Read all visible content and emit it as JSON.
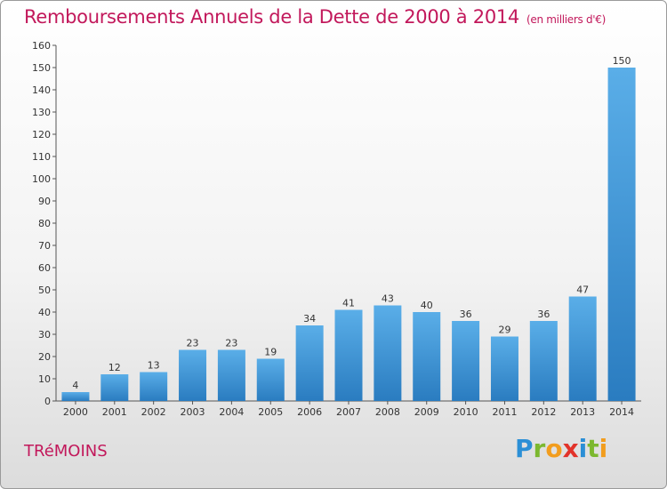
{
  "title": "Remboursements Annuels de la Dette de 2000 à 2014",
  "subtitle": "(en milliers d'€)",
  "town": "TRéMOINS",
  "logo": {
    "letters": [
      "P",
      "r",
      "o",
      "x",
      "i",
      "t",
      "i"
    ],
    "colors": [
      "#2b8fd6",
      "#7cb82f",
      "#f29d1e",
      "#e2332a",
      "#2b8fd6",
      "#7cb82f",
      "#f29d1e"
    ]
  },
  "colors": {
    "bar_top": "#5aaee8",
    "bar_bottom": "#2a7cc0",
    "title": "#c2185b"
  },
  "chart_data": {
    "type": "bar",
    "categories": [
      "2000",
      "2001",
      "2002",
      "2003",
      "2004",
      "2005",
      "2006",
      "2007",
      "2008",
      "2009",
      "2010",
      "2011",
      "2012",
      "2013",
      "2014"
    ],
    "values": [
      4,
      12,
      13,
      23,
      23,
      19,
      34,
      41,
      43,
      40,
      36,
      29,
      36,
      47,
      150
    ],
    "ylim": [
      0,
      160
    ],
    "yticks": [
      0,
      10,
      20,
      30,
      40,
      50,
      60,
      70,
      80,
      90,
      100,
      110,
      120,
      130,
      140,
      150,
      160
    ],
    "grid": false
  }
}
